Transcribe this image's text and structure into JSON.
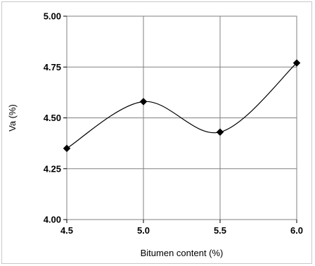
{
  "chart_data": {
    "type": "line",
    "title": "",
    "xlabel": "Bitumen content (%)",
    "ylabel": "Va (%)",
    "x": [
      4.5,
      5.0,
      5.5,
      6.0
    ],
    "series": [
      {
        "values": [
          4.35,
          4.58,
          4.43,
          4.77
        ],
        "color": "#000000",
        "marker": "diamond",
        "smooth": true
      }
    ],
    "xlim": [
      4.5,
      6.0
    ],
    "ylim": [
      4.0,
      5.0
    ],
    "x_ticks": [
      "4.5",
      "5.0",
      "5.5",
      "6.0"
    ],
    "y_ticks": [
      "4.00",
      "4.25",
      "4.50",
      "4.75",
      "5.00"
    ],
    "grid": true,
    "legend": "none"
  }
}
